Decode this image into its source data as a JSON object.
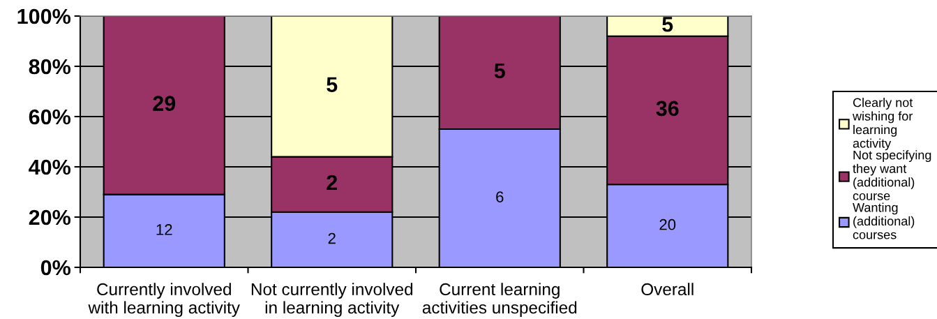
{
  "chart_data": {
    "type": "bar",
    "stacked": true,
    "categories": [
      "Currently involved\nwith learning activity",
      "Not currently involved\nin learning activity",
      "Current learning\nactivities unspecified",
      "Overall"
    ],
    "series": [
      {
        "name": "Wanting\n(additional)\ncourses",
        "color": "#9999ff",
        "values": [
          29,
          22,
          55,
          33
        ]
      },
      {
        "name": "Not specifying\nthey want\n(additional)\ncourse",
        "color": "#993366",
        "values": [
          71,
          22,
          45,
          59
        ]
      },
      {
        "name": "Clearly not\nwishing for\nlearning\nactivity",
        "color": "#ffffcc",
        "values": [
          null,
          56,
          null,
          8
        ]
      }
    ],
    "annotations": [
      "12",
      "29",
      "2",
      "2",
      "5",
      "6",
      "5",
      "20",
      "36",
      "5"
    ],
    "ylim": [
      0,
      100
    ],
    "yticks": [
      {
        "value": 0,
        "label": "0%"
      },
      {
        "value": 20,
        "label": "20%"
      },
      {
        "value": 40,
        "label": "40%"
      },
      {
        "value": 60,
        "label": "60%"
      },
      {
        "value": 80,
        "label": "80%"
      },
      {
        "value": 100,
        "label": "100%"
      }
    ],
    "grid": "y",
    "legend": "right"
  }
}
